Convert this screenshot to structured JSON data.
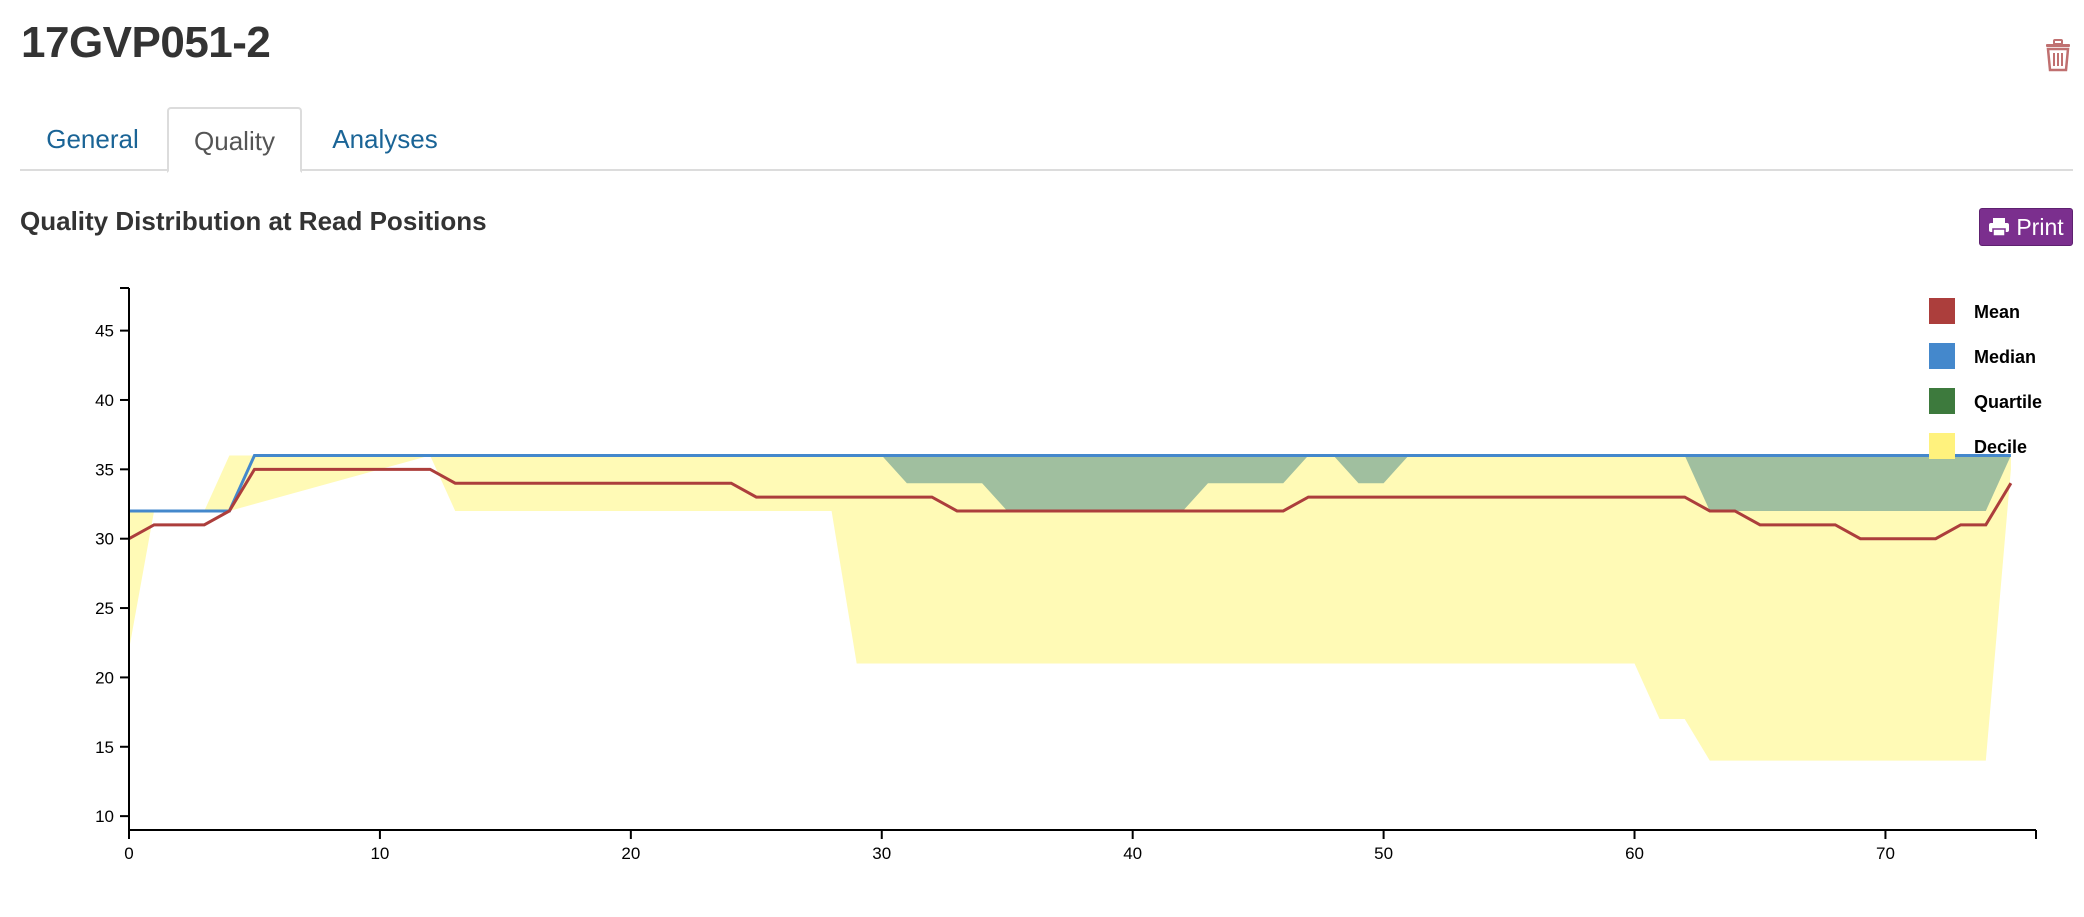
{
  "page": {
    "title": "17GVP051-2"
  },
  "tabs": [
    {
      "label": "General",
      "active": false
    },
    {
      "label": "Quality",
      "active": true
    },
    {
      "label": "Analyses",
      "active": false
    }
  ],
  "section": {
    "title": "Quality Distribution at Read Positions",
    "print_label": "Print"
  },
  "icons": {
    "trash": "trash-icon",
    "print": "printer-icon"
  },
  "colors": {
    "mean": "#ac3e3c",
    "median": "#4488cc",
    "quartile_fill": "#a0bf9f",
    "decile_fill": "#fffab6",
    "quartile_legend": "#3d7a3d",
    "decile_legend": "#fff27d",
    "print_button": "#7b2f8e",
    "trash": "#c07070",
    "tab_link": "#1a6496"
  },
  "chart_data": {
    "type": "area",
    "xlim": [
      0,
      76
    ],
    "ylim": [
      9,
      48
    ],
    "xticks": [
      0,
      10,
      20,
      30,
      40,
      50,
      60,
      70
    ],
    "yticks": [
      10,
      15,
      20,
      25,
      30,
      35,
      40,
      45
    ],
    "legend_position": "top-right",
    "legend": [
      {
        "name": "Mean",
        "color": "#ac3e3c"
      },
      {
        "name": "Median",
        "color": "#4488cc"
      },
      {
        "name": "Quartile",
        "color": "#3d7a3d"
      },
      {
        "name": "Decile",
        "color": "#fff27d"
      }
    ],
    "mean": {
      "x": [
        0,
        1,
        3,
        4,
        5,
        12,
        13,
        24,
        25,
        32,
        33,
        46,
        47,
        62,
        63,
        64,
        65,
        68,
        69,
        72,
        73,
        74,
        75
      ],
      "y": [
        30,
        31,
        31,
        32,
        35,
        35,
        34,
        34,
        33,
        33,
        32,
        32,
        33,
        33,
        32,
        32,
        31,
        31,
        30,
        30,
        31,
        31,
        34
      ]
    },
    "median": {
      "x": [
        0,
        4,
        5,
        75
      ],
      "y": [
        32,
        32,
        36,
        36
      ]
    },
    "decile": {
      "x": [
        0,
        1,
        3,
        4,
        12,
        13,
        28,
        29,
        60,
        61,
        62,
        63,
        74,
        75
      ],
      "upper": [
        32,
        32,
        32,
        36,
        36,
        36,
        36,
        36,
        36,
        36,
        36,
        36,
        36,
        36
      ],
      "lower": [
        22,
        32,
        32,
        32,
        36,
        32,
        32,
        21,
        21,
        17,
        17,
        14,
        14,
        35
      ]
    },
    "quartile_segments": [
      {
        "x": [
          30,
          31,
          34,
          35,
          42,
          43,
          46,
          47
        ],
        "upper": [
          36,
          36,
          36,
          36,
          36,
          36,
          36,
          36
        ],
        "lower": [
          36,
          34,
          34,
          32,
          32,
          34,
          34,
          36
        ]
      },
      {
        "x": [
          48,
          49,
          50,
          51
        ],
        "upper": [
          36,
          36,
          36,
          36
        ],
        "lower": [
          36,
          34,
          34,
          36
        ]
      },
      {
        "x": [
          62,
          63,
          74,
          75
        ],
        "upper": [
          36,
          36,
          36,
          36
        ],
        "lower": [
          36,
          32,
          32,
          36
        ]
      }
    ]
  }
}
